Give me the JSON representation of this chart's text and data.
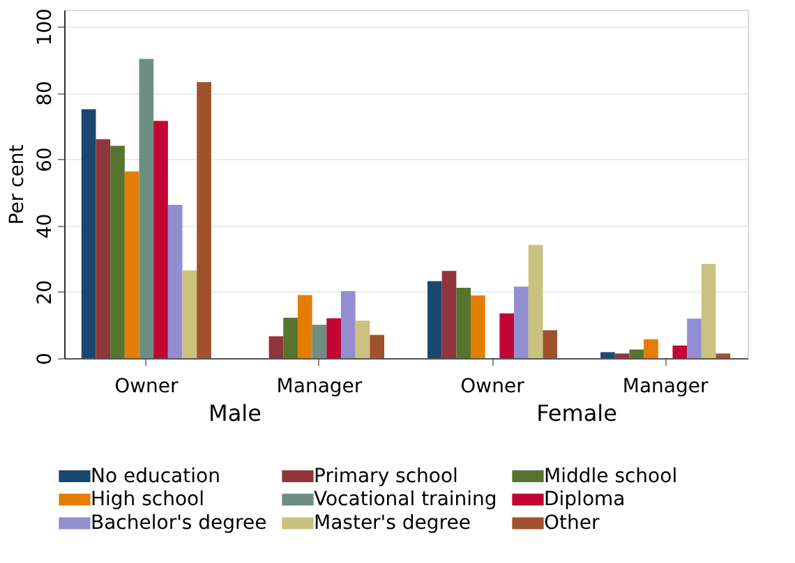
{
  "chart_data": {
    "type": "bar",
    "ylabel": "Per cent",
    "categories": [
      "Owner",
      "Manager",
      "Owner",
      "Manager"
    ],
    "annotations": [
      "Male",
      "Female"
    ],
    "series": [
      {
        "name": "No education",
        "color": "#1a476f",
        "values": [
          75,
          null,
          23.2,
          1.8
        ]
      },
      {
        "name": "Primary school",
        "color": "#90353b",
        "values": [
          66,
          6.6,
          26.3,
          1.4
        ]
      },
      {
        "name": "Middle school",
        "color": "#55752f",
        "values": [
          64,
          12.2,
          21.2,
          2.6
        ]
      },
      {
        "name": "High school",
        "color": "#e37e00",
        "values": [
          56.3,
          19,
          18.9,
          5.7
        ]
      },
      {
        "name": "Vocational training",
        "color": "#6e8e84",
        "values": [
          90.2,
          10.1,
          null,
          null
        ]
      },
      {
        "name": "Diploma",
        "color": "#c10534",
        "values": [
          71.5,
          12,
          13.5,
          3.8
        ]
      },
      {
        "name": "Bachelor's degree",
        "color": "#938dd2",
        "values": [
          46.2,
          20.2,
          21.6,
          11.9
        ]
      },
      {
        "name": "Master's degree",
        "color": "#cac27e",
        "values": [
          26.4,
          11.3,
          34.1,
          28.4
        ]
      },
      {
        "name": "Other",
        "color": "#a0522d",
        "values": [
          83.2,
          7,
          8.4,
          1.4
        ]
      }
    ],
    "ylim": [
      0,
      105
    ],
    "yticks": [
      0,
      20,
      40,
      60,
      80,
      100
    ],
    "grid": "y",
    "legend": "bottom"
  }
}
